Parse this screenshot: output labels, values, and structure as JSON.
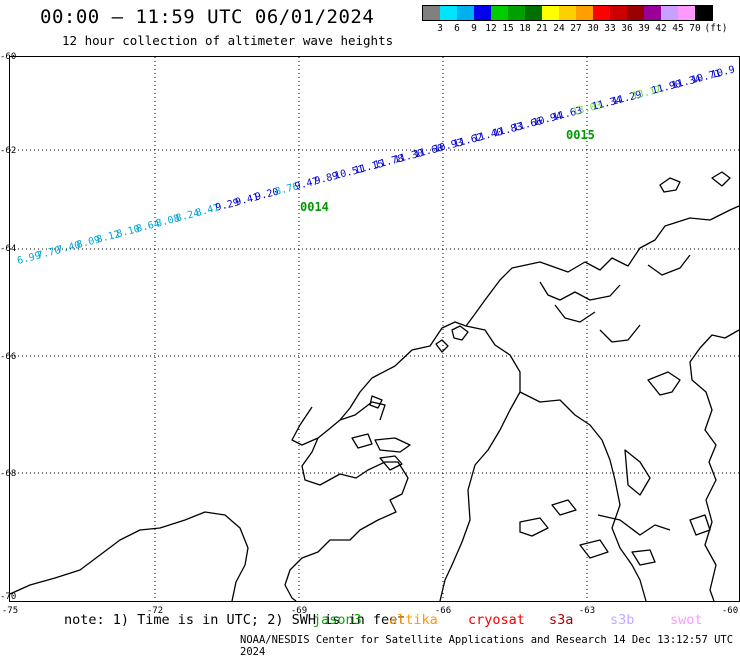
{
  "header": {
    "title": "00:00 – 11:59 UTC 06/01/2024",
    "subtitle": "12 hour collection of altimeter wave heights"
  },
  "legend": {
    "colors": [
      "#808080",
      "#00e5ff",
      "#00b0f0",
      "#0000ee",
      "#00cc00",
      "#00a000",
      "#007000",
      "#ffff00",
      "#ffd000",
      "#ffa000",
      "#ff0000",
      "#cc0000",
      "#990000",
      "#990099",
      "#c8a0ff",
      "#ff99ff",
      "#000000"
    ],
    "labels": [
      "3",
      "6",
      "9",
      "12",
      "15",
      "18",
      "21",
      "24",
      "27",
      "30",
      "33",
      "36",
      "39",
      "42",
      "45",
      "70"
    ],
    "unit": "(ft)"
  },
  "axes": {
    "y_labels": [
      "-60",
      "-62",
      "-64",
      "-66",
      "-68",
      "-70"
    ],
    "x_labels": [
      "-75",
      "-72",
      "-69",
      "-66",
      "-63",
      "-60"
    ]
  },
  "track": {
    "segments": [
      {
        "text": "6.99",
        "color": "#00a6d6"
      },
      {
        "text": "7.70",
        "color": "#00a6d6"
      },
      {
        "text": "7.40",
        "color": "#00a6d6"
      },
      {
        "text": "8.09",
        "color": "#00a6d6"
      },
      {
        "text": "8.12",
        "color": "#00a6d6"
      },
      {
        "text": "8.10",
        "color": "#00a6d6"
      },
      {
        "text": "8.64",
        "color": "#00a6d6"
      },
      {
        "text": "8.08",
        "color": "#00a6d6"
      },
      {
        "text": "8.24",
        "color": "#00a6d6"
      },
      {
        "text": "8.47",
        "color": "#00a6d6"
      },
      {
        "text": "9.29",
        "color": "#0000cc"
      },
      {
        "text": "9.41",
        "color": "#0000cc"
      },
      {
        "text": "9.20",
        "color": "#0000cc"
      },
      {
        "text": "8.76",
        "color": "#00a6d6"
      },
      {
        "text": "9.47",
        "color": "#0000cc"
      },
      {
        "text": "9.89",
        "color": "#0000cc"
      },
      {
        "text": "10.51",
        "color": "#0000cc"
      },
      {
        "text": "11.15",
        "color": "#0000cc"
      },
      {
        "text": "11.78",
        "color": "#0000cc"
      },
      {
        "text": "11.30",
        "color": "#0000cc"
      },
      {
        "text": "11.60",
        "color": "#0000cc"
      },
      {
        "text": "10.93",
        "color": "#0000cc"
      },
      {
        "text": "11.62",
        "color": "#0000cc"
      },
      {
        "text": "11.40",
        "color": "#0000cc"
      },
      {
        "text": "11.83",
        "color": "#0000cc"
      },
      {
        "text": "11.66",
        "color": "#0000cc"
      },
      {
        "text": "10.94",
        "color": "#0000cc"
      },
      {
        "text": "11.63",
        "color": "#0000cc"
      },
      {
        "text": "13.03",
        "color": "#66dd44"
      },
      {
        "text": "11.34",
        "color": "#0000cc"
      },
      {
        "text": "11.29",
        "color": "#0000cc"
      },
      {
        "text": "13.17",
        "color": "#66dd44"
      },
      {
        "text": "11.90",
        "color": "#0000cc"
      },
      {
        "text": "11.34",
        "color": "#0000cc"
      },
      {
        "text": "10.71",
        "color": "#0000cc"
      },
      {
        "text": "10.9",
        "color": "#0000cc"
      }
    ],
    "time_marks": [
      {
        "label": "0014",
        "color": "#009900"
      },
      {
        "label": "0015",
        "color": "#009900"
      }
    ]
  },
  "footer": {
    "note": "note:  1) Time is in UTC; 2) SWH is in feet",
    "satellites": [
      {
        "name": "jason3",
        "color": "#00aa00"
      },
      {
        "name": "altika",
        "color": "#ff9900"
      },
      {
        "name": "cryosat",
        "color": "#ee0000"
      },
      {
        "name": "s3a",
        "color": "#aa0000"
      },
      {
        "name": "s3b",
        "color": "#c8a8ff"
      },
      {
        "name": "swot",
        "color": "#ff99ff"
      }
    ],
    "credit": "NOAA/NESDIS Center for Satellite Applications and Research    14 Dec 13:12:57 UTC 2024"
  }
}
